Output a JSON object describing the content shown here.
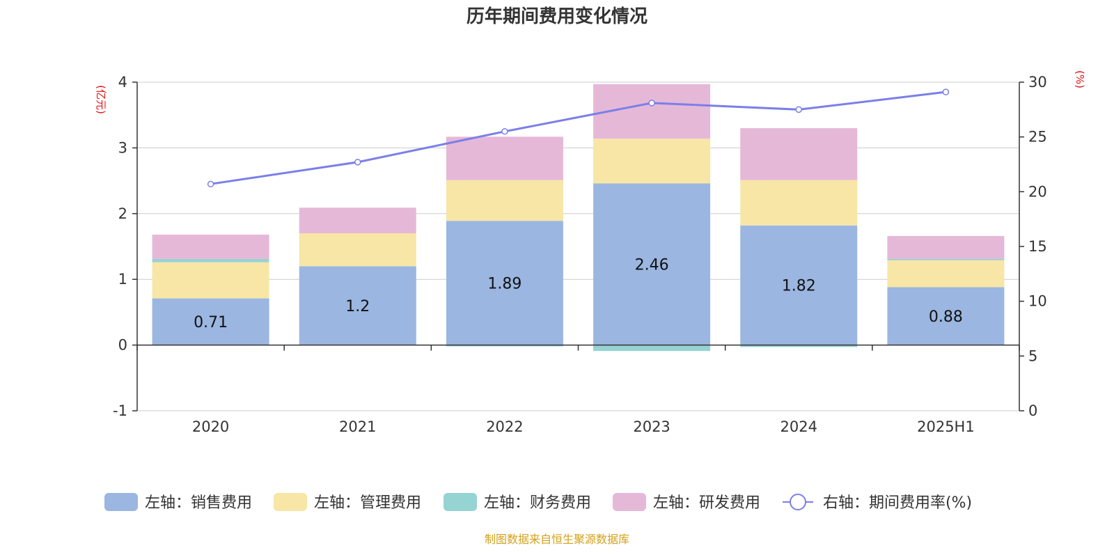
{
  "chart_data": {
    "type": "bar",
    "title": "历年期间费用变化情况",
    "categories": [
      "2020",
      "2021",
      "2022",
      "2023",
      "2024",
      "2025H1"
    ],
    "left_axis": {
      "unit": "(亿元)",
      "ylim": [
        -1,
        4
      ],
      "ticks": [
        -1,
        0,
        1,
        2,
        3,
        4
      ]
    },
    "right_axis": {
      "unit": "(%)",
      "ylim": [
        0,
        30
      ],
      "ticks": [
        0,
        5,
        10,
        15,
        20,
        25,
        30
      ]
    },
    "series": [
      {
        "name": "左轴：销售费用",
        "type": "bar",
        "stack": "left",
        "color": "#9bb6e0",
        "values": [
          0.71,
          1.2,
          1.89,
          2.46,
          1.82,
          0.88
        ]
      },
      {
        "name": "左轴：管理费用",
        "type": "bar",
        "stack": "left",
        "color": "#f7e6a6",
        "values": [
          0.55,
          0.5,
          0.62,
          0.68,
          0.69,
          0.41
        ]
      },
      {
        "name": "左轴：财务费用",
        "type": "bar",
        "stack": "left",
        "color": "#96d3d3",
        "values": [
          0.05,
          0.0,
          -0.02,
          -0.09,
          -0.03,
          0.02
        ]
      },
      {
        "name": "左轴：研发费用",
        "type": "bar",
        "stack": "left",
        "color": "#e6b8d8",
        "values": [
          0.37,
          0.39,
          0.66,
          0.83,
          0.79,
          0.35
        ]
      },
      {
        "name": "右轴：期间费用率(%)",
        "type": "line",
        "axis": "right",
        "color": "#7b7fe8",
        "values": [
          20.7,
          22.7,
          25.5,
          28.1,
          27.5,
          29.1
        ]
      }
    ],
    "data_labels": [
      "0.71",
      "1.2",
      "1.89",
      "2.46",
      "1.82",
      "0.88"
    ],
    "grid": true,
    "legend_position": "bottom"
  },
  "source_text": "制图数据来自恒生聚源数据库"
}
